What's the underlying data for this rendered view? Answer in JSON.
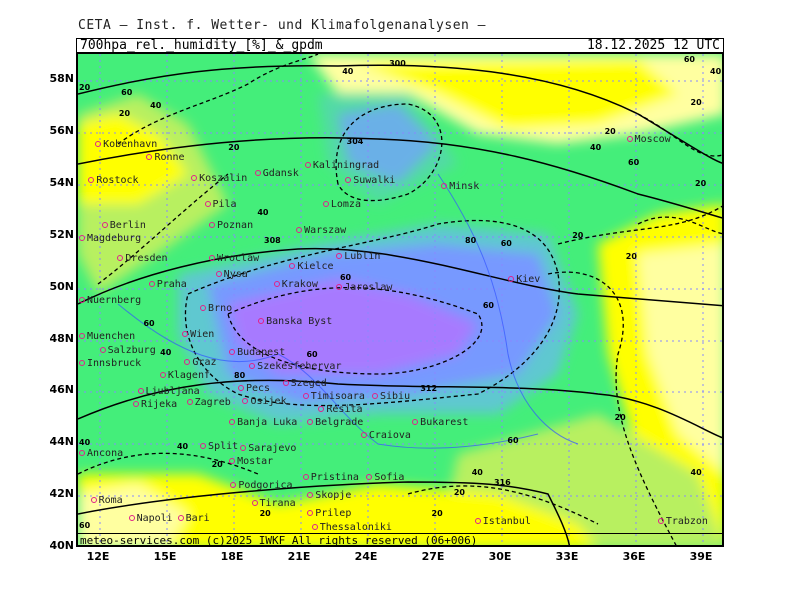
{
  "header": {
    "organization": "CETA – Inst. f. Wetter- und Klimafolgenanalysen –",
    "field": "700hpa_rel._humidity_[%]_&_gpdm",
    "datetime": "18.12.2025 12 UTC"
  },
  "footer": {
    "credit": "meteo-services.com  (c)2025 IWKF  All rights reserved (06+006)"
  },
  "axes": {
    "lat_labels": [
      "58N",
      "56N",
      "54N",
      "52N",
      "50N",
      "48N",
      "46N",
      "44N",
      "42N",
      "40N"
    ],
    "lon_labels": [
      "12E",
      "15E",
      "18E",
      "21E",
      "24E",
      "27E",
      "30E",
      "33E",
      "36E",
      "39E"
    ]
  },
  "colors": {
    "very_dry": "#ffff00",
    "dry": "#ffffa0",
    "moderate": "#b8f060",
    "moist": "#44ee7a",
    "humid": "#5fc8d0",
    "very_humid": "#7799ff",
    "saturated": "#a77aff",
    "geopotential_contour": "#000000",
    "humidity_contour": "#000000",
    "wind_arrows": "#ff8040",
    "borders": "#888888",
    "rivers": "#3355ff"
  },
  "cities": [
    {
      "name": "Kobenhavn",
      "x": 11.9,
      "y": 55.5
    },
    {
      "name": "Ronne",
      "x": 14.2,
      "y": 55.0
    },
    {
      "name": "Rostock",
      "x": 11.6,
      "y": 54.1
    },
    {
      "name": "Koszalin",
      "x": 16.2,
      "y": 54.2
    },
    {
      "name": "Gdansk",
      "x": 18.6,
      "y": 54.4
    },
    {
      "name": "Kaliningrad",
      "x": 20.4,
      "y": 54.7
    },
    {
      "name": "Suwalki",
      "x": 23.1,
      "y": 54.1
    },
    {
      "name": "Minsk",
      "x": 27.4,
      "y": 53.9
    },
    {
      "name": "Pila",
      "x": 16.8,
      "y": 53.2
    },
    {
      "name": "Lomza",
      "x": 22.1,
      "y": 53.2
    },
    {
      "name": "Berlin",
      "x": 12.2,
      "y": 52.4
    },
    {
      "name": "Magdeburg",
      "x": 10.9,
      "y": 52.1
    },
    {
      "name": "Poznan",
      "x": 17.0,
      "y": 52.4
    },
    {
      "name": "Warszaw",
      "x": 20.9,
      "y": 52.2
    },
    {
      "name": "Dresden",
      "x": 12.9,
      "y": 51.1
    },
    {
      "name": "Wroclaw",
      "x": 17.0,
      "y": 51.1
    },
    {
      "name": "Kielce",
      "x": 20.6,
      "y": 50.8
    },
    {
      "name": "Lublin",
      "x": 22.7,
      "y": 51.2
    },
    {
      "name": "Nysa",
      "x": 17.3,
      "y": 50.5
    },
    {
      "name": "Praha",
      "x": 14.3,
      "y": 50.1
    },
    {
      "name": "Krakow",
      "x": 19.9,
      "y": 50.1
    },
    {
      "name": "Jaroslaw",
      "x": 22.7,
      "y": 50.0
    },
    {
      "name": "Kiev",
      "x": 30.4,
      "y": 50.3
    },
    {
      "name": "Nuernberg",
      "x": 10.2,
      "y": 49.5
    },
    {
      "name": "Brno",
      "x": 16.6,
      "y": 49.2
    },
    {
      "name": "Banska Byst",
      "x": 19.2,
      "y": 48.7
    },
    {
      "name": "Muenchen",
      "x": 10.6,
      "y": 48.1
    },
    {
      "name": "Wien",
      "x": 15.8,
      "y": 48.2
    },
    {
      "name": "Salzburg",
      "x": 12.1,
      "y": 47.8
    },
    {
      "name": "Budapest",
      "x": 17.9,
      "y": 47.5
    },
    {
      "name": "Innsbruck",
      "x": 10.5,
      "y": 47.3
    },
    {
      "name": "Graz",
      "x": 15.9,
      "y": 47.1
    },
    {
      "name": "Szekesfehervar",
      "x": 18.8,
      "y": 47.2
    },
    {
      "name": "Klagenf",
      "x": 14.8,
      "y": 46.6
    },
    {
      "name": "Szeged",
      "x": 20.3,
      "y": 46.3
    },
    {
      "name": "Ljubljana",
      "x": 13.8,
      "y": 46.0
    },
    {
      "name": "Pecs",
      "x": 18.3,
      "y": 46.1
    },
    {
      "name": "Rijeka",
      "x": 13.6,
      "y": 45.5
    },
    {
      "name": "Zagreb",
      "x": 16.0,
      "y": 45.8
    },
    {
      "name": "Osijek",
      "x": 18.5,
      "y": 45.6
    },
    {
      "name": "Timisoara",
      "x": 21.2,
      "y": 45.8
    },
    {
      "name": "Resita",
      "x": 21.9,
      "y": 45.3
    },
    {
      "name": "Sibiu",
      "x": 24.3,
      "y": 45.8
    },
    {
      "name": "Banja Luka",
      "x": 17.9,
      "y": 44.8
    },
    {
      "name": "Belgrade",
      "x": 20.5,
      "y": 44.8
    },
    {
      "name": "Bukarest",
      "x": 26.1,
      "y": 44.8
    },
    {
      "name": "Craiova",
      "x": 23.8,
      "y": 44.3
    },
    {
      "name": "Ancona",
      "x": 10.9,
      "y": 43.6
    },
    {
      "name": "Split",
      "x": 16.6,
      "y": 43.9
    },
    {
      "name": "Sarajevo",
      "x": 18.4,
      "y": 43.8
    },
    {
      "name": "Mostar",
      "x": 17.9,
      "y": 43.3
    },
    {
      "name": "Pristina",
      "x": 21.2,
      "y": 42.7
    },
    {
      "name": "Sofia",
      "x": 23.6,
      "y": 42.7
    },
    {
      "name": "Podgorica",
      "x": 19.3,
      "y": 42.4
    },
    {
      "name": "Skopje",
      "x": 21.4,
      "y": 42.0
    },
    {
      "name": "Tirana",
      "x": 19.8,
      "y": 41.7
    },
    {
      "name": "Roma",
      "x": 11.7,
      "y": 41.8
    },
    {
      "name": "Napoli",
      "x": 13.4,
      "y": 41.1
    },
    {
      "name": "Bari",
      "x": 14.7,
      "y": 41.1
    },
    {
      "name": "Prilep",
      "x": 21.4,
      "y": 41.3
    },
    {
      "name": "Thessaloniki",
      "x": 21.6,
      "y": 41.0
    },
    {
      "name": "Istanbul",
      "x": 28.9,
      "y": 41.0
    },
    {
      "name": "Moscow",
      "x": 35.7,
      "y": 55.7
    },
    {
      "name": "Trabzon",
      "x": 37.1,
      "y": 41.0
    }
  ],
  "contour_labels": [
    {
      "text": "300",
      "x": 25.2,
      "y": 58.6
    },
    {
      "text": "304",
      "x": 23.3,
      "y": 55.6
    },
    {
      "text": "308",
      "x": 19.6,
      "y": 51.8
    },
    {
      "text": "312",
      "x": 26.6,
      "y": 46.1
    },
    {
      "text": "316",
      "x": 29.9,
      "y": 42.5
    },
    {
      "text": "40",
      "x": 23.1,
      "y": 58.3
    },
    {
      "text": "40",
      "x": 14.5,
      "y": 57.0
    },
    {
      "text": "60",
      "x": 13.2,
      "y": 57.5
    },
    {
      "text": "20",
      "x": 13.1,
      "y": 56.7
    },
    {
      "text": "20",
      "x": 18.0,
      "y": 55.4
    },
    {
      "text": "40",
      "x": 19.3,
      "y": 52.9
    },
    {
      "text": "80",
      "x": 28.6,
      "y": 51.8
    },
    {
      "text": "60",
      "x": 30.2,
      "y": 51.7
    },
    {
      "text": "60",
      "x": 23.0,
      "y": 50.4
    },
    {
      "text": "60",
      "x": 29.4,
      "y": 49.3
    },
    {
      "text": "80",
      "x": 19.6,
      "y": 46.0
    },
    {
      "text": "60",
      "x": 21.5,
      "y": 47.0
    },
    {
      "text": "60",
      "x": 30.5,
      "y": 44.1
    },
    {
      "text": "40",
      "x": 28.9,
      "y": 42.9
    },
    {
      "text": "20",
      "x": 28.1,
      "y": 42.1
    },
    {
      "text": "20",
      "x": 27.1,
      "y": 41.3
    },
    {
      "text": "20",
      "x": 33.4,
      "y": 52.0
    },
    {
      "text": "20",
      "x": 35.8,
      "y": 51.2
    },
    {
      "text": "40",
      "x": 34.2,
      "y": 55.4
    },
    {
      "text": "20",
      "x": 35.3,
      "y": 56.0
    },
    {
      "text": "60",
      "x": 35.9,
      "y": 54.8
    },
    {
      "text": "20",
      "x": 38.9,
      "y": 54.0
    },
    {
      "text": "20",
      "x": 35.3,
      "y": 45.0
    },
    {
      "text": "40",
      "x": 38.7,
      "y": 42.9
    },
    {
      "text": "60",
      "x": 38.4,
      "y": 58.8
    },
    {
      "text": "20",
      "x": 38.7,
      "y": 57.1
    },
    {
      "text": "40",
      "x": 39.7,
      "y": 58.3
    },
    {
      "text": "40",
      "x": 14.5,
      "y": 47.5
    },
    {
      "text": "60",
      "x": 14.2,
      "y": 48.6
    },
    {
      "text": "40",
      "x": 15.7,
      "y": 43.9
    },
    {
      "text": "40",
      "x": 11.2,
      "y": 43.6
    },
    {
      "text": "20",
      "x": 17.7,
      "y": 43.2
    },
    {
      "text": "20",
      "x": 19.4,
      "y": 41.3
    },
    {
      "text": "60",
      "x": 10.5,
      "y": 40.6
    },
    {
      "text": "20",
      "x": 10.5,
      "y": 57.7
    }
  ]
}
